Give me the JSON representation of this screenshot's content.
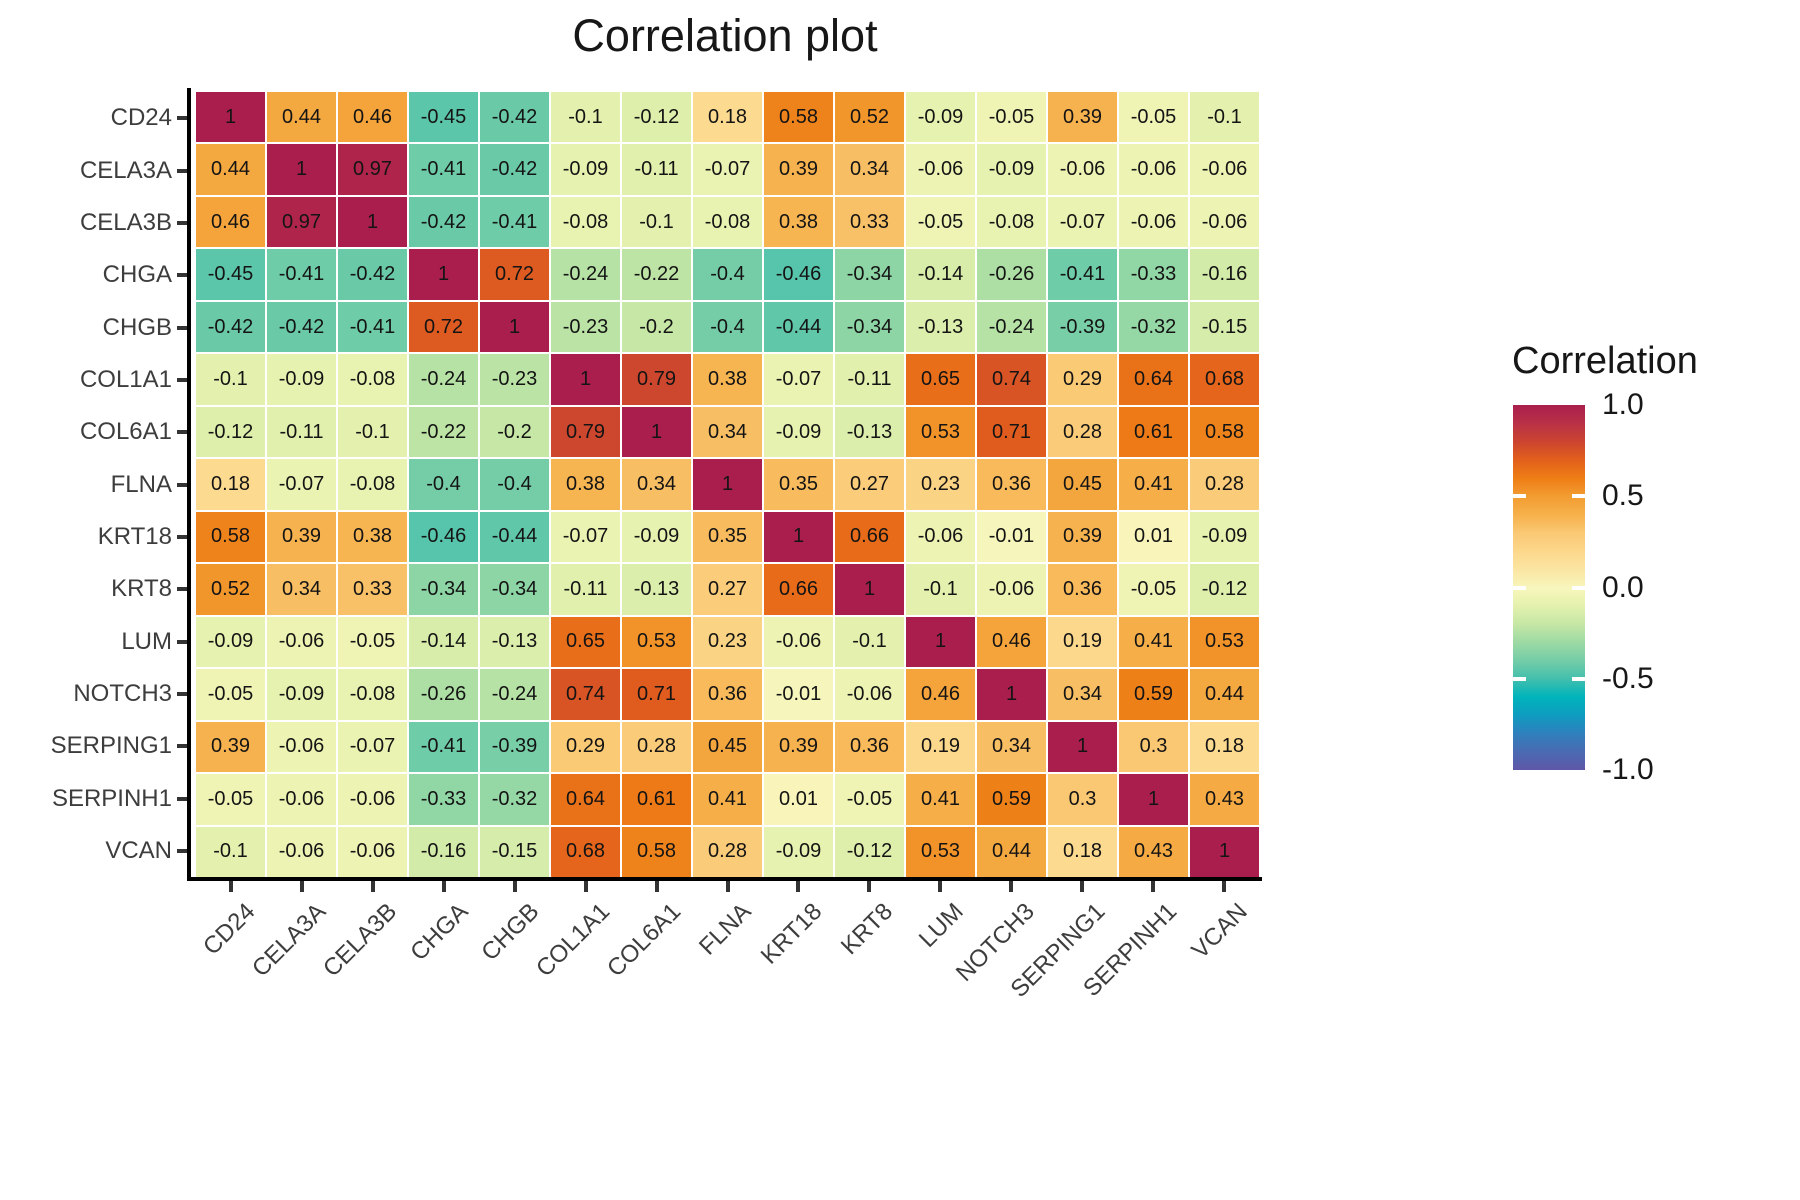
{
  "title": "Correlation plot",
  "legend": {
    "title": "Correlation",
    "ticks": [
      {
        "label": "1.0",
        "value": 1
      },
      {
        "label": "0.5",
        "value": 0.5
      },
      {
        "label": "0.0",
        "value": 0
      },
      {
        "label": "-0.5",
        "value": -0.5
      },
      {
        "label": "-1.0",
        "value": -1
      }
    ]
  },
  "chart_data": {
    "type": "heatmap",
    "title": "Correlation plot",
    "legend_title": "Correlation",
    "value_range": [
      -1,
      1
    ],
    "labels": [
      "CD24",
      "CELA3A",
      "CELA3B",
      "CHGA",
      "CHGB",
      "COL1A1",
      "COL6A1",
      "FLNA",
      "KRT18",
      "KRT8",
      "LUM",
      "NOTCH3",
      "SERPING1",
      "SERPINH1",
      "VCAN"
    ],
    "matrix": [
      [
        1,
        0.44,
        0.46,
        -0.45,
        -0.42,
        -0.1,
        -0.12,
        0.18,
        0.58,
        0.52,
        -0.09,
        -0.05,
        0.39,
        -0.05,
        -0.1
      ],
      [
        0.44,
        1,
        0.97,
        -0.41,
        -0.42,
        -0.09,
        -0.11,
        -0.07,
        0.39,
        0.34,
        -0.06,
        -0.09,
        -0.06,
        -0.06,
        -0.06
      ],
      [
        0.46,
        0.97,
        1,
        -0.42,
        -0.41,
        -0.08,
        -0.1,
        -0.08,
        0.38,
        0.33,
        -0.05,
        -0.08,
        -0.07,
        -0.06,
        -0.06
      ],
      [
        -0.45,
        -0.41,
        -0.42,
        1,
        0.72,
        -0.24,
        -0.22,
        -0.4,
        -0.46,
        -0.34,
        -0.14,
        -0.26,
        -0.41,
        -0.33,
        -0.16
      ],
      [
        -0.42,
        -0.42,
        -0.41,
        0.72,
        1,
        -0.23,
        -0.2,
        -0.4,
        -0.44,
        -0.34,
        -0.13,
        -0.24,
        -0.39,
        -0.32,
        -0.15
      ],
      [
        -0.1,
        -0.09,
        -0.08,
        -0.24,
        -0.23,
        1,
        0.79,
        0.38,
        -0.07,
        -0.11,
        0.65,
        0.74,
        0.29,
        0.64,
        0.68
      ],
      [
        -0.12,
        -0.11,
        -0.1,
        -0.22,
        -0.2,
        0.79,
        1,
        0.34,
        -0.09,
        -0.13,
        0.53,
        0.71,
        0.28,
        0.61,
        0.58
      ],
      [
        0.18,
        -0.07,
        -0.08,
        -0.4,
        -0.4,
        0.38,
        0.34,
        1,
        0.35,
        0.27,
        0.23,
        0.36,
        0.45,
        0.41,
        0.28
      ],
      [
        0.58,
        0.39,
        0.38,
        -0.46,
        -0.44,
        -0.07,
        -0.09,
        0.35,
        1,
        0.66,
        -0.06,
        -0.01,
        0.39,
        0.01,
        -0.09
      ],
      [
        0.52,
        0.34,
        0.33,
        -0.34,
        -0.34,
        -0.11,
        -0.13,
        0.27,
        0.66,
        1,
        -0.1,
        -0.06,
        0.36,
        -0.05,
        -0.12
      ],
      [
        -0.09,
        -0.06,
        -0.05,
        -0.14,
        -0.13,
        0.65,
        0.53,
        0.23,
        -0.06,
        -0.1,
        1,
        0.46,
        0.19,
        0.41,
        0.53
      ],
      [
        -0.05,
        -0.09,
        -0.08,
        -0.26,
        -0.24,
        0.74,
        0.71,
        0.36,
        -0.01,
        -0.06,
        0.46,
        1,
        0.34,
        0.59,
        0.44
      ],
      [
        0.39,
        -0.06,
        -0.07,
        -0.41,
        -0.39,
        0.29,
        0.28,
        0.45,
        0.39,
        0.36,
        0.19,
        0.34,
        1,
        0.3,
        0.18
      ],
      [
        -0.05,
        -0.06,
        -0.06,
        -0.33,
        -0.32,
        0.64,
        0.61,
        0.41,
        0.01,
        -0.05,
        0.41,
        0.59,
        0.3,
        1,
        0.43
      ],
      [
        -0.1,
        -0.06,
        -0.06,
        -0.16,
        -0.15,
        0.68,
        0.58,
        0.28,
        -0.09,
        -0.12,
        0.53,
        0.44,
        0.18,
        0.43,
        1
      ]
    ],
    "colorscale": [
      {
        "value": 1.0,
        "color": "#A91E4D"
      },
      {
        "value": 0.9,
        "color": "#B93147"
      },
      {
        "value": 0.8,
        "color": "#CB4430"
      },
      {
        "value": 0.7,
        "color": "#E25F1C"
      },
      {
        "value": 0.6,
        "color": "#EE7D15"
      },
      {
        "value": 0.5,
        "color": "#F29C31"
      },
      {
        "value": 0.4,
        "color": "#F6B04A"
      },
      {
        "value": 0.3,
        "color": "#FAC873"
      },
      {
        "value": 0.2,
        "color": "#FCD78B"
      },
      {
        "value": 0.1,
        "color": "#FBE5A2"
      },
      {
        "value": 0.02,
        "color": "#F8F2B5"
      },
      {
        "value": 0.0,
        "color": "#F7F6BE"
      },
      {
        "value": -0.04,
        "color": "#F1F5B6"
      },
      {
        "value": -0.1,
        "color": "#E4F1AE"
      },
      {
        "value": -0.2,
        "color": "#C6E7A5"
      },
      {
        "value": -0.3,
        "color": "#9DDAA4"
      },
      {
        "value": -0.4,
        "color": "#74CDA7"
      },
      {
        "value": -0.5,
        "color": "#43BFAD"
      },
      {
        "value": -0.6,
        "color": "#00B4BB"
      },
      {
        "value": -0.7,
        "color": "#0E9CC0"
      },
      {
        "value": -0.8,
        "color": "#2F80BD"
      },
      {
        "value": -0.9,
        "color": "#4A6BB2"
      },
      {
        "value": -1.0,
        "color": "#5F57A8"
      }
    ]
  }
}
